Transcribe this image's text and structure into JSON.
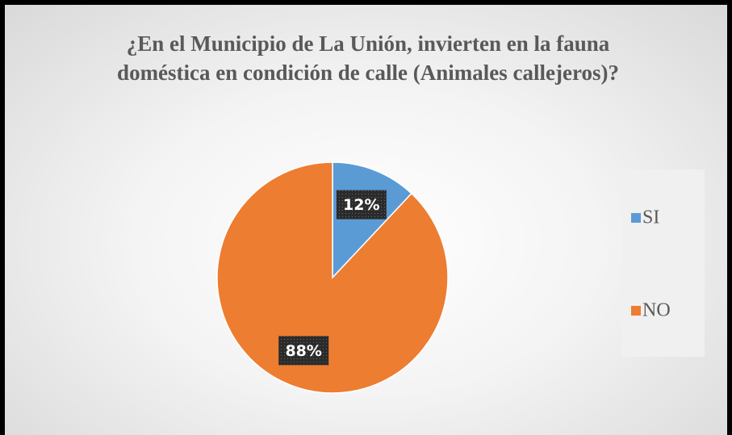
{
  "chart_data": {
    "type": "pie",
    "title": "¿En el Municipio de La Unión, invierten en la fauna doméstica en condición de calle (Animales callejeros)?",
    "categories": [
      "SI",
      "NO"
    ],
    "values": [
      12,
      88
    ],
    "value_labels": [
      "12%",
      "88%"
    ],
    "colors": [
      "#5b9bd5",
      "#ed7d31"
    ],
    "legend": "right"
  }
}
